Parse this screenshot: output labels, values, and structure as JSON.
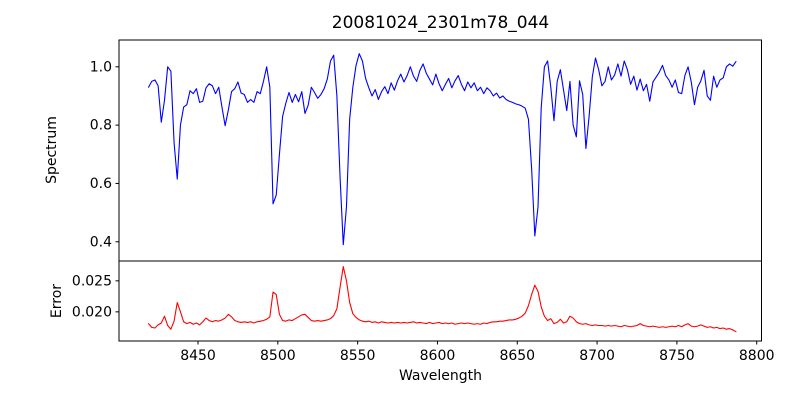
{
  "title": "20081024_2301m78_044",
  "colors": {
    "spectrum_line": "#0000ff",
    "error_line": "#ff0000",
    "axis": "#000000",
    "background": "#ffffff"
  },
  "chart_data": [
    {
      "type": "line",
      "name": "spectrum",
      "title": "20081024_2301m78_044",
      "ylabel": "Spectrum",
      "legend": "none",
      "grid": false,
      "color": "#0000ff",
      "xlim": [
        8400.5,
        8803.0
      ],
      "ylim": [
        0.334,
        1.092
      ],
      "yticks": [
        0.4,
        0.6,
        0.8,
        1.0
      ],
      "ytick_labels": [
        "0.4",
        "0.6",
        "0.8",
        "1.0"
      ],
      "x_start": 8419,
      "x_step": 2,
      "values": [
        0.93,
        0.95,
        0.955,
        0.935,
        0.81,
        0.885,
        1.0,
        0.985,
        0.74,
        0.615,
        0.8,
        0.862,
        0.87,
        0.918,
        0.908,
        0.925,
        0.878,
        0.882,
        0.928,
        0.942,
        0.935,
        0.908,
        0.93,
        0.862,
        0.798,
        0.852,
        0.915,
        0.925,
        0.948,
        0.91,
        0.905,
        0.878,
        0.888,
        0.878,
        0.915,
        0.908,
        0.95,
        1.0,
        0.93,
        0.53,
        0.56,
        0.7,
        0.83,
        0.875,
        0.912,
        0.878,
        0.905,
        0.88,
        0.915,
        0.84,
        0.868,
        0.93,
        0.912,
        0.892,
        0.905,
        0.925,
        0.958,
        1.02,
        1.04,
        0.9,
        0.62,
        0.39,
        0.52,
        0.82,
        0.93,
        1.005,
        1.045,
        1.02,
        0.96,
        0.928,
        0.9,
        0.922,
        0.888,
        0.915,
        0.932,
        0.908,
        0.945,
        0.92,
        0.952,
        0.975,
        0.948,
        0.97,
        1.0,
        0.968,
        0.95,
        0.988,
        1.01,
        0.978,
        0.958,
        0.938,
        0.975,
        0.942,
        0.918,
        0.94,
        0.96,
        0.928,
        0.952,
        0.97,
        0.94,
        0.918,
        0.948,
        0.928,
        0.945,
        0.918,
        0.93,
        0.908,
        0.928,
        0.918,
        0.9,
        0.91,
        0.893,
        0.9,
        0.888,
        0.882,
        0.878,
        0.873,
        0.87,
        0.865,
        0.858,
        0.82,
        0.65,
        0.42,
        0.52,
        0.86,
        1.0,
        1.02,
        0.93,
        0.815,
        0.95,
        0.99,
        0.92,
        0.85,
        0.95,
        0.8,
        0.76,
        0.952,
        0.905,
        0.72,
        0.83,
        0.965,
        1.03,
        0.99,
        0.935,
        0.95,
        1.0,
        0.955,
        0.972,
        1.01,
        0.968,
        1.02,
        0.99,
        0.94,
        0.968,
        0.92,
        0.958,
        0.918,
        0.94,
        0.882,
        0.948,
        0.965,
        0.982,
        1.005,
        0.97,
        0.955,
        0.93,
        0.955,
        0.912,
        0.908,
        0.97,
        1.0,
        0.948,
        0.87,
        0.93,
        0.952,
        0.988,
        0.9,
        0.885,
        0.968,
        0.93,
        0.955,
        0.962,
        1.0,
        1.01,
        1.002,
        1.018
      ]
    },
    {
      "type": "line",
      "name": "error",
      "ylabel": "Error",
      "xlabel": "Wavelength",
      "legend": "none",
      "grid": false,
      "color": "#ff0000",
      "xlim": [
        8400.5,
        8803.0
      ],
      "ylim": [
        0.0153,
        0.0282
      ],
      "xticks": [
        8450,
        8500,
        8550,
        8600,
        8650,
        8700,
        8750,
        8800
      ],
      "xtick_labels": [
        "8450",
        "8500",
        "8550",
        "8600",
        "8650",
        "8700",
        "8750",
        "8800"
      ],
      "yticks": [
        0.02,
        0.025
      ],
      "ytick_labels": [
        "0.020",
        "0.025"
      ],
      "x_start": 8419,
      "x_step": 2,
      "values": [
        0.0181,
        0.0175,
        0.0174,
        0.0179,
        0.0182,
        0.0193,
        0.0178,
        0.0172,
        0.0185,
        0.0215,
        0.02,
        0.0184,
        0.0181,
        0.0183,
        0.018,
        0.0182,
        0.0179,
        0.0184,
        0.019,
        0.0186,
        0.0184,
        0.0186,
        0.0185,
        0.0187,
        0.019,
        0.0196,
        0.0192,
        0.0186,
        0.0184,
        0.0183,
        0.0184,
        0.0183,
        0.0184,
        0.0182,
        0.0184,
        0.0185,
        0.0186,
        0.0188,
        0.0192,
        0.0232,
        0.0228,
        0.0196,
        0.0186,
        0.0185,
        0.0187,
        0.0186,
        0.0189,
        0.0192,
        0.0195,
        0.0196,
        0.0191,
        0.0186,
        0.0185,
        0.0186,
        0.0185,
        0.0186,
        0.0187,
        0.0189,
        0.0194,
        0.0205,
        0.024,
        0.0273,
        0.025,
        0.0215,
        0.0197,
        0.0191,
        0.0187,
        0.0185,
        0.0184,
        0.0185,
        0.0183,
        0.0184,
        0.0182,
        0.0184,
        0.0183,
        0.0182,
        0.0183,
        0.0182,
        0.0183,
        0.0182,
        0.0183,
        0.0182,
        0.0183,
        0.0184,
        0.0182,
        0.0183,
        0.0182,
        0.0181,
        0.0183,
        0.0181,
        0.0182,
        0.0183,
        0.0181,
        0.0182,
        0.0181,
        0.0182,
        0.018,
        0.0181,
        0.0182,
        0.0181,
        0.0182,
        0.0181,
        0.018,
        0.0181,
        0.018,
        0.0182,
        0.0181,
        0.0183,
        0.0184,
        0.0184,
        0.0185,
        0.0185,
        0.0186,
        0.0187,
        0.0187,
        0.0188,
        0.019,
        0.0193,
        0.0198,
        0.021,
        0.0228,
        0.0243,
        0.0233,
        0.0208,
        0.0193,
        0.0186,
        0.0189,
        0.0181,
        0.0183,
        0.0188,
        0.0182,
        0.0184,
        0.0193,
        0.019,
        0.0184,
        0.0181,
        0.018,
        0.0181,
        0.0179,
        0.0178,
        0.0179,
        0.0178,
        0.0178,
        0.0177,
        0.0178,
        0.0177,
        0.0178,
        0.0177,
        0.0176,
        0.0178,
        0.0177,
        0.0176,
        0.0177,
        0.0178,
        0.0181,
        0.0178,
        0.0177,
        0.0176,
        0.0177,
        0.0176,
        0.0175,
        0.0176,
        0.0175,
        0.0176,
        0.0177,
        0.0176,
        0.0178,
        0.0176,
        0.0179,
        0.0181,
        0.0177,
        0.0176,
        0.0177,
        0.0179,
        0.0177,
        0.0175,
        0.0176,
        0.0174,
        0.0175,
        0.0173,
        0.0174,
        0.0172,
        0.0173,
        0.0171,
        0.0168
      ]
    }
  ]
}
